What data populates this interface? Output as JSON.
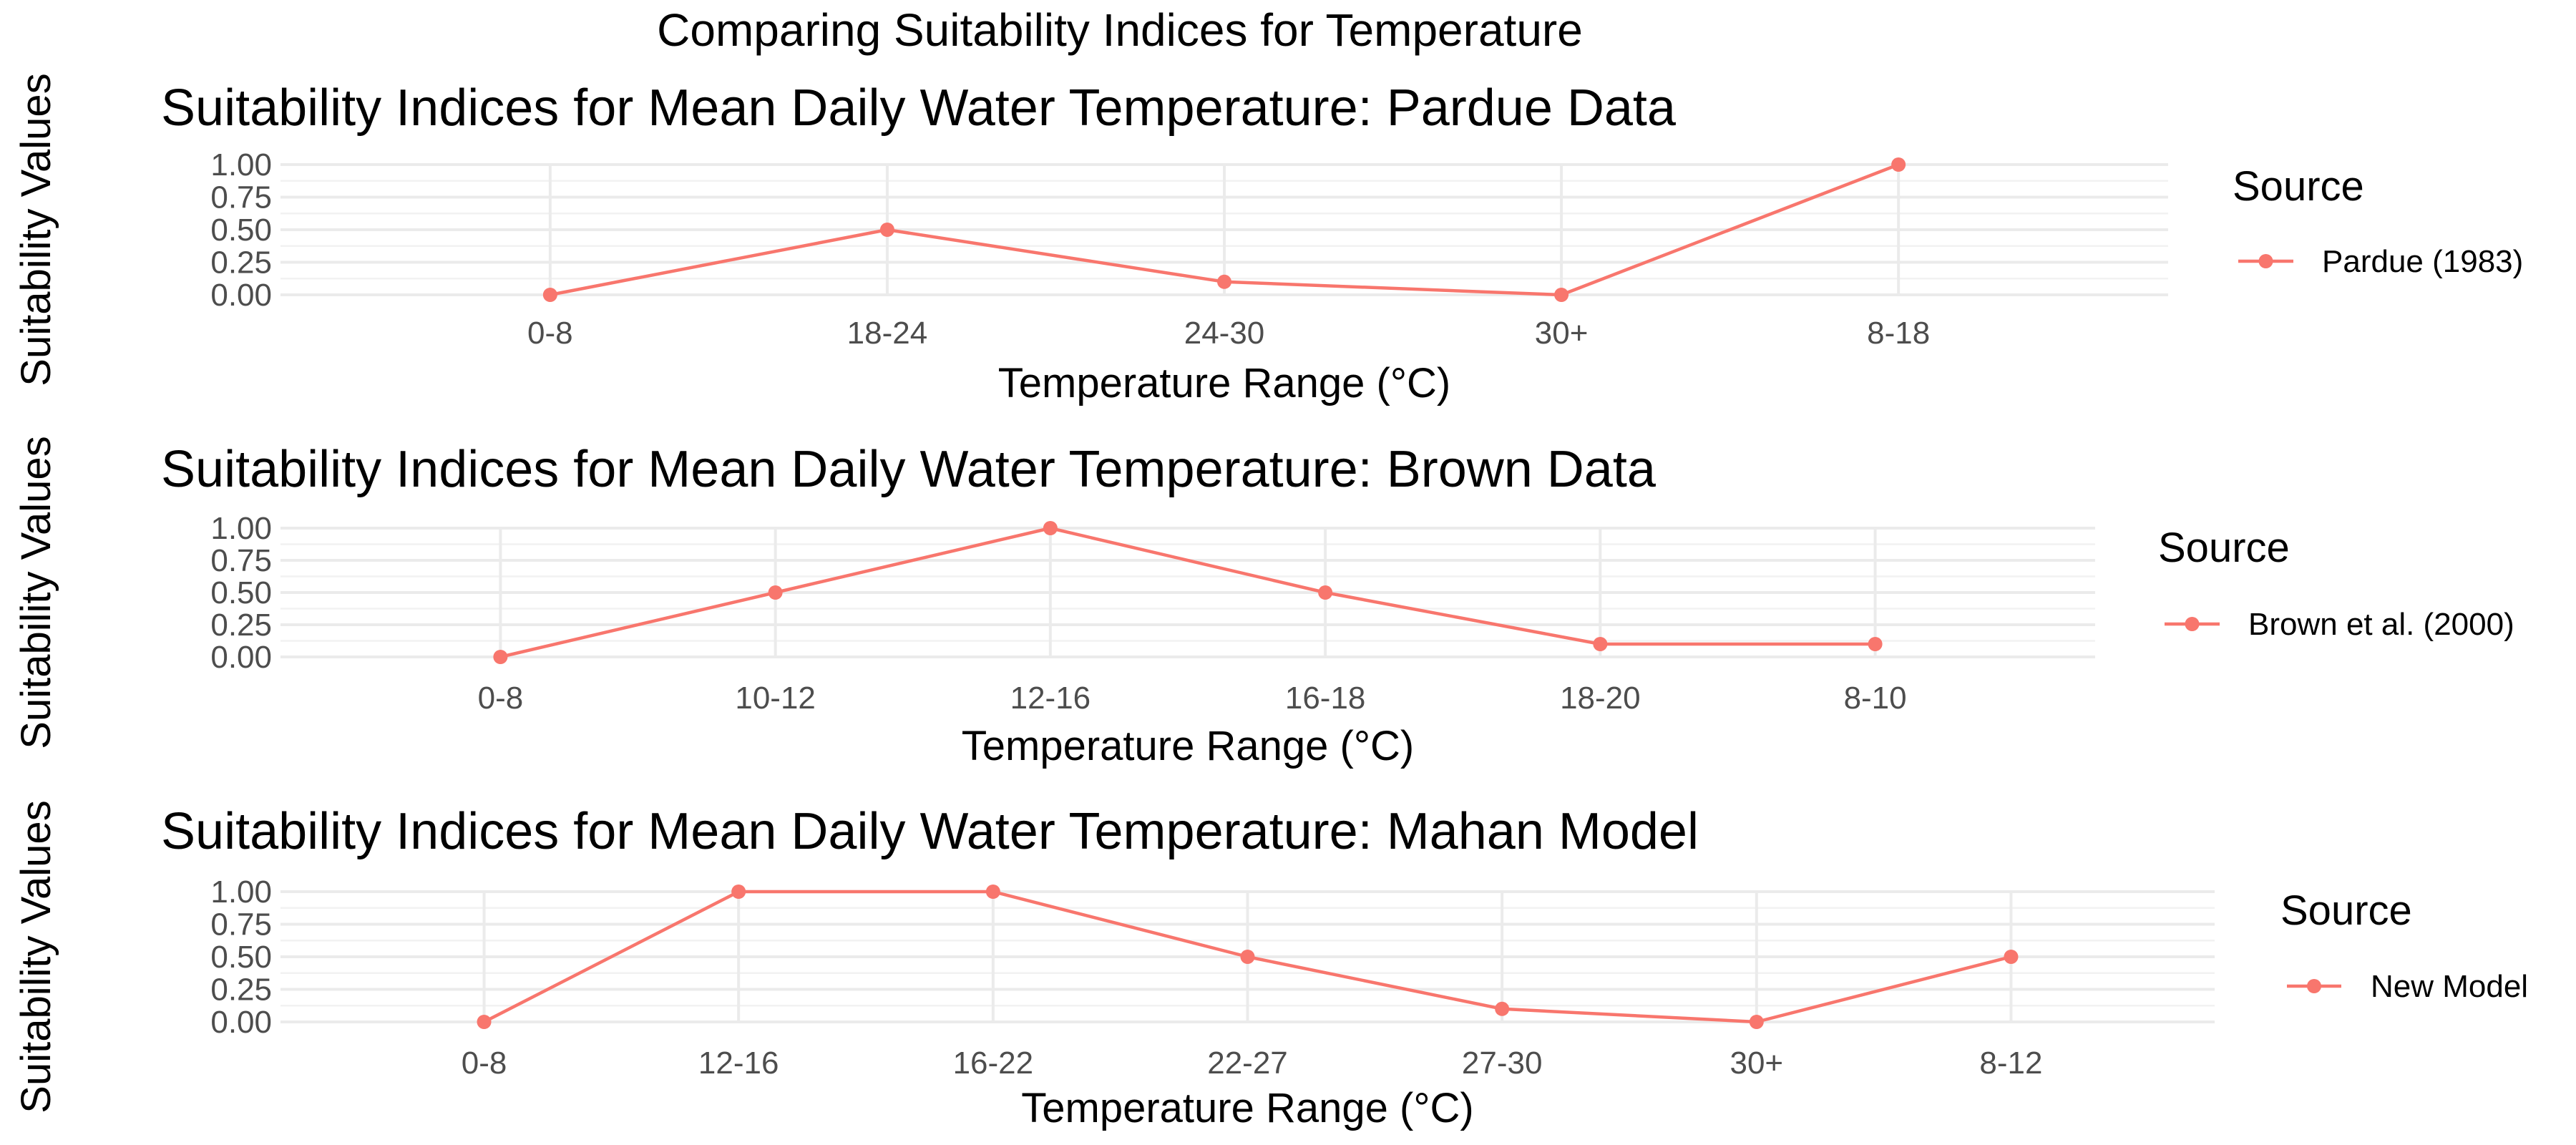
{
  "overall_title": "Comparing Suitability Indices for Temperature",
  "colors": {
    "series": "#F8766D",
    "grid_major": "#EBEBEB",
    "grid_minor": "#F2F2F2",
    "tick_text": "#4D4D4D"
  },
  "chart_data": [
    {
      "type": "line",
      "title": "Suitability Indices for Mean Daily Water Temperature: Pardue Data",
      "xlabel": "Temperature Range (°C)",
      "ylabel": "Suitability Values",
      "categories": [
        "0-8",
        "18-24",
        "24-30",
        "30+",
        "8-18"
      ],
      "y_ticks": [
        "0.00",
        "0.25",
        "0.50",
        "0.75",
        "1.00"
      ],
      "ylim": [
        0,
        1
      ],
      "series": [
        {
          "name": "Pardue (1983)",
          "values": [
            0,
            0.5,
            0.1,
            0,
            1
          ]
        }
      ],
      "legend_title": "Source",
      "legend_position": "right",
      "grid": true
    },
    {
      "type": "line",
      "title": "Suitability Indices for Mean Daily Water Temperature: Brown Data",
      "xlabel": "Temperature Range (°C)",
      "ylabel": "Suitability Values",
      "categories": [
        "0-8",
        "10-12",
        "12-16",
        "16-18",
        "18-20",
        "8-10"
      ],
      "y_ticks": [
        "0.00",
        "0.25",
        "0.50",
        "0.75",
        "1.00"
      ],
      "ylim": [
        0,
        1
      ],
      "series": [
        {
          "name": "Brown et al. (2000)",
          "values": [
            0,
            0.5,
            1,
            0.5,
            0.1,
            0.1
          ]
        }
      ],
      "legend_title": "Source",
      "legend_position": "right",
      "grid": true
    },
    {
      "type": "line",
      "title": "Suitability Indices for Mean Daily Water Temperature: Mahan Model",
      "xlabel": "Temperature Range (°C)",
      "ylabel": "Suitability Values",
      "categories": [
        "0-8",
        "12-16",
        "16-22",
        "22-27",
        "27-30",
        "30+",
        "8-12"
      ],
      "y_ticks": [
        "0.00",
        "0.25",
        "0.50",
        "0.75",
        "1.00"
      ],
      "ylim": [
        0,
        1
      ],
      "series": [
        {
          "name": "New Model",
          "values": [
            0,
            1,
            1,
            0.5,
            0.1,
            0,
            0.5
          ]
        }
      ],
      "legend_title": "Source",
      "legend_position": "right",
      "grid": true
    }
  ]
}
